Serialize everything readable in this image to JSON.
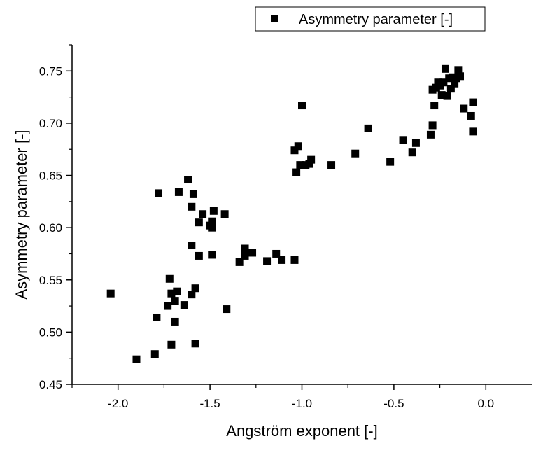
{
  "chart_data": {
    "type": "scatter",
    "xlabel": "Angström exponent [-]",
    "ylabel": "Asymmetry parameter [-]",
    "xlim": [
      -2.25,
      0.25
    ],
    "ylim": [
      0.45,
      0.775
    ],
    "x_ticks": [
      -2.0,
      -1.5,
      -1.0,
      -0.5,
      0.0
    ],
    "x_tick_labels": [
      "-2.0",
      "-1.5",
      "-1.0",
      "-0.5",
      "0.0"
    ],
    "y_ticks": [
      0.45,
      0.5,
      0.55,
      0.6,
      0.65,
      0.7,
      0.75
    ],
    "y_tick_labels": [
      "0.45",
      "0.50",
      "0.55",
      "0.60",
      "0.65",
      "0.70",
      "0.75"
    ],
    "grid": false,
    "legend_position": "top-right",
    "marker": "square",
    "marker_color": "#000000",
    "series": [
      {
        "name": "Asymmetry parameter [-]",
        "points": [
          [
            -2.04,
            0.537
          ],
          [
            -1.9,
            0.474
          ],
          [
            -1.8,
            0.479
          ],
          [
            -1.79,
            0.514
          ],
          [
            -1.78,
            0.633
          ],
          [
            -1.73,
            0.525
          ],
          [
            -1.72,
            0.551
          ],
          [
            -1.71,
            0.488
          ],
          [
            -1.71,
            0.537
          ],
          [
            -1.69,
            0.51
          ],
          [
            -1.69,
            0.53
          ],
          [
            -1.68,
            0.539
          ],
          [
            -1.67,
            0.634
          ],
          [
            -1.64,
            0.526
          ],
          [
            -1.62,
            0.646
          ],
          [
            -1.6,
            0.62
          ],
          [
            -1.6,
            0.536
          ],
          [
            -1.6,
            0.583
          ],
          [
            -1.59,
            0.632
          ],
          [
            -1.58,
            0.542
          ],
          [
            -1.58,
            0.489
          ],
          [
            -1.56,
            0.605
          ],
          [
            -1.56,
            0.573
          ],
          [
            -1.54,
            0.613
          ],
          [
            -1.5,
            0.602
          ],
          [
            -1.49,
            0.606
          ],
          [
            -1.49,
            0.6
          ],
          [
            -1.49,
            0.574
          ],
          [
            -1.48,
            0.616
          ],
          [
            -1.42,
            0.613
          ],
          [
            -1.41,
            0.522
          ],
          [
            -1.34,
            0.567
          ],
          [
            -1.31,
            0.58
          ],
          [
            -1.31,
            0.573
          ],
          [
            -1.27,
            0.576
          ],
          [
            -1.19,
            0.568
          ],
          [
            -1.14,
            0.575
          ],
          [
            -1.11,
            0.569
          ],
          [
            -1.04,
            0.569
          ],
          [
            -1.04,
            0.674
          ],
          [
            -1.03,
            0.653
          ],
          [
            -1.02,
            0.678
          ],
          [
            -1.01,
            0.66
          ],
          [
            -1.0,
            0.717
          ],
          [
            -0.98,
            0.66
          ],
          [
            -0.96,
            0.661
          ],
          [
            -0.95,
            0.665
          ],
          [
            -0.84,
            0.66
          ],
          [
            -0.71,
            0.671
          ],
          [
            -0.64,
            0.695
          ],
          [
            -0.52,
            0.663
          ],
          [
            -0.45,
            0.684
          ],
          [
            -0.4,
            0.672
          ],
          [
            -0.38,
            0.681
          ],
          [
            -0.3,
            0.689
          ],
          [
            -0.29,
            0.698
          ],
          [
            -0.29,
            0.732
          ],
          [
            -0.28,
            0.717
          ],
          [
            -0.27,
            0.734
          ],
          [
            -0.26,
            0.739
          ],
          [
            -0.25,
            0.736
          ],
          [
            -0.24,
            0.727
          ],
          [
            -0.23,
            0.739
          ],
          [
            -0.22,
            0.752
          ],
          [
            -0.21,
            0.726
          ],
          [
            -0.2,
            0.743
          ],
          [
            -0.19,
            0.733
          ],
          [
            -0.18,
            0.744
          ],
          [
            -0.17,
            0.738
          ],
          [
            -0.16,
            0.743
          ],
          [
            -0.15,
            0.751
          ],
          [
            -0.14,
            0.745
          ],
          [
            -0.12,
            0.714
          ],
          [
            -0.08,
            0.707
          ],
          [
            -0.07,
            0.72
          ],
          [
            -0.07,
            0.692
          ]
        ]
      }
    ]
  }
}
